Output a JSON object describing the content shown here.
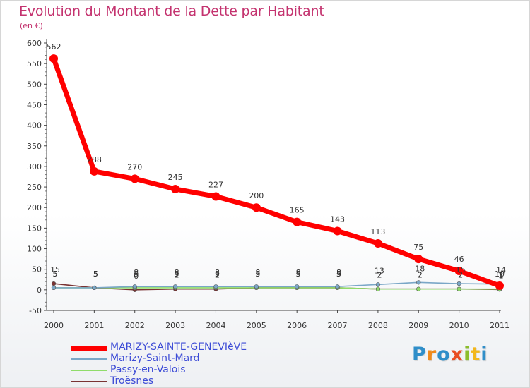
{
  "chart_data": {
    "type": "line",
    "title": "Evolution du Montant de la Dette par Habitant",
    "subtitle": "(en €)",
    "xlabel": "",
    "ylabel": "",
    "x": [
      "2000",
      "2001",
      "2002",
      "2003",
      "2004",
      "2005",
      "2006",
      "2007",
      "2008",
      "2009",
      "2010",
      "2011"
    ],
    "ylim": [
      -50,
      600
    ],
    "yticks": [
      -50,
      0,
      50,
      100,
      150,
      200,
      250,
      300,
      350,
      400,
      450,
      500,
      550,
      600
    ],
    "grid": false,
    "legend_position": "bottom-left",
    "series": [
      {
        "name": "MARIZY-SAINTE-GENEVIèVE",
        "color": "#ff0000",
        "values": [
          562,
          288,
          270,
          245,
          227,
          200,
          165,
          143,
          113,
          75,
          46,
          10
        ],
        "labels": [
          "562",
          "288",
          "270",
          "245",
          "227",
          "200",
          "165",
          "143",
          "113",
          "75",
          "46",
          "10"
        ]
      },
      {
        "name": "Marizy-Saint-Mard",
        "color": "#7aa7c7",
        "values": [
          5,
          5,
          8,
          8,
          8,
          8,
          8,
          8,
          13,
          18,
          15,
          14
        ],
        "labels": [
          "5",
          "5",
          "8",
          "8",
          "8",
          "8",
          "8",
          "8",
          "13",
          "18",
          "15",
          "14"
        ]
      },
      {
        "name": "Passy-en-Valois",
        "color": "#8fdc6a",
        "values": [
          5,
          5,
          5,
          5,
          5,
          5,
          5,
          5,
          2,
          2,
          2,
          2
        ],
        "labels": [
          "5",
          "5",
          "5",
          "5",
          "5",
          "5",
          "5",
          "5",
          "2",
          "2",
          "2",
          "2"
        ]
      },
      {
        "name": "Troësnes",
        "color": "#7a3434",
        "values": [
          15,
          5,
          0,
          2,
          2,
          5,
          5,
          5,
          2,
          2,
          2,
          1
        ],
        "labels": [
          "15",
          "5",
          "0",
          "2",
          "2",
          "5",
          "5",
          "5",
          "2",
          "2",
          "2",
          "1"
        ]
      }
    ]
  },
  "logo": {
    "letters": [
      "P",
      "r",
      "o",
      "x",
      "i",
      "t",
      "i"
    ]
  }
}
